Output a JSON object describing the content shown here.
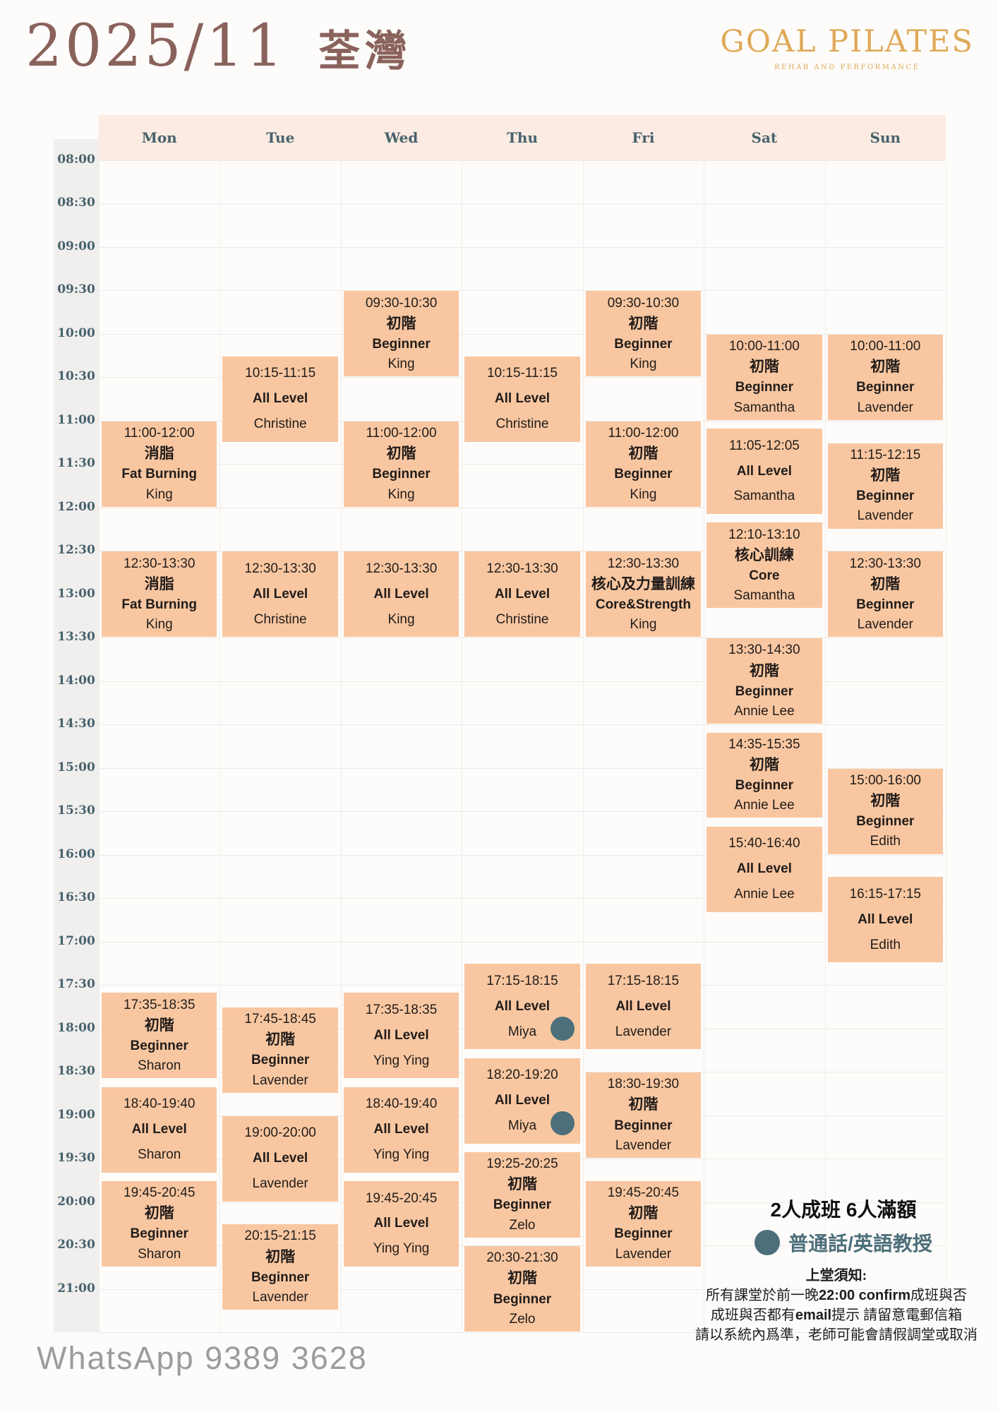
{
  "header": {
    "month": "2025/11",
    "location": "荃灣",
    "brand": "GOAL PILATES",
    "brand_tagline": "REHAB AND PERFORMANCE"
  },
  "calendar": {
    "days": [
      "Mon",
      "Tue",
      "Wed",
      "Thu",
      "Fri",
      "Sat",
      "Sun"
    ],
    "time_labels": [
      "08:00",
      "08:30",
      "09:00",
      "09:30",
      "10:00",
      "10:30",
      "11:00",
      "11:30",
      "12:00",
      "12:30",
      "13:00",
      "13:30",
      "14:00",
      "14:30",
      "15:00",
      "15:30",
      "16:00",
      "16:30",
      "17:00",
      "17:30",
      "18:00",
      "18:30",
      "19:00",
      "19:30",
      "20:00",
      "20:30",
      "21:00"
    ],
    "grid_start": "08:00",
    "grid_end": "21:30"
  },
  "classes": [
    {
      "day": 0,
      "start": "11:00",
      "end": "12:00",
      "name_zh": "消脂",
      "name_en": "Fat Burning",
      "teacher": "King",
      "dot": false
    },
    {
      "day": 0,
      "start": "12:30",
      "end": "13:30",
      "name_zh": "消脂",
      "name_en": "Fat Burning",
      "teacher": "King",
      "dot": false
    },
    {
      "day": 0,
      "start": "17:35",
      "end": "18:35",
      "name_zh": "初階",
      "name_en": "Beginner",
      "teacher": "Sharon",
      "dot": false
    },
    {
      "day": 0,
      "start": "18:40",
      "end": "19:40",
      "name_zh": "",
      "name_en": "All Level",
      "teacher": "Sharon",
      "dot": false
    },
    {
      "day": 0,
      "start": "19:45",
      "end": "20:45",
      "name_zh": "初階",
      "name_en": "Beginner",
      "teacher": "Sharon",
      "dot": false
    },
    {
      "day": 1,
      "start": "10:15",
      "end": "11:15",
      "name_zh": "",
      "name_en": "All Level",
      "teacher": "Christine",
      "dot": false
    },
    {
      "day": 1,
      "start": "12:30",
      "end": "13:30",
      "name_zh": "",
      "name_en": "All Level",
      "teacher": "Christine",
      "dot": false
    },
    {
      "day": 1,
      "start": "17:45",
      "end": "18:45",
      "name_zh": "初階",
      "name_en": "Beginner",
      "teacher": "Lavender",
      "dot": false
    },
    {
      "day": 1,
      "start": "19:00",
      "end": "20:00",
      "name_zh": "",
      "name_en": "All Level",
      "teacher": "Lavender",
      "dot": false
    },
    {
      "day": 1,
      "start": "20:15",
      "end": "21:15",
      "name_zh": "初階",
      "name_en": "Beginner",
      "teacher": "Lavender",
      "dot": false
    },
    {
      "day": 2,
      "start": "09:30",
      "end": "10:30",
      "name_zh": "初階",
      "name_en": "Beginner",
      "teacher": "King",
      "dot": false
    },
    {
      "day": 2,
      "start": "11:00",
      "end": "12:00",
      "name_zh": "初階",
      "name_en": "Beginner",
      "teacher": "King",
      "dot": false
    },
    {
      "day": 2,
      "start": "12:30",
      "end": "13:30",
      "name_zh": "",
      "name_en": "All Level",
      "teacher": "King",
      "dot": false
    },
    {
      "day": 2,
      "start": "17:35",
      "end": "18:35",
      "name_zh": "",
      "name_en": "All Level",
      "teacher": "Ying Ying",
      "dot": false
    },
    {
      "day": 2,
      "start": "18:40",
      "end": "19:40",
      "name_zh": "",
      "name_en": "All Level",
      "teacher": "Ying Ying",
      "dot": false
    },
    {
      "day": 2,
      "start": "19:45",
      "end": "20:45",
      "name_zh": "",
      "name_en": "All Level",
      "teacher": "Ying Ying",
      "dot": false
    },
    {
      "day": 3,
      "start": "10:15",
      "end": "11:15",
      "name_zh": "",
      "name_en": "All Level",
      "teacher": "Christine",
      "dot": false
    },
    {
      "day": 3,
      "start": "12:30",
      "end": "13:30",
      "name_zh": "",
      "name_en": "All Level",
      "teacher": "Christine",
      "dot": false
    },
    {
      "day": 3,
      "start": "17:15",
      "end": "18:15",
      "name_zh": "",
      "name_en": "All Level",
      "teacher": "Miya",
      "dot": true
    },
    {
      "day": 3,
      "start": "18:20",
      "end": "19:20",
      "name_zh": "",
      "name_en": "All Level",
      "teacher": "Miya",
      "dot": true
    },
    {
      "day": 3,
      "start": "19:25",
      "end": "20:25",
      "name_zh": "初階",
      "name_en": "Beginner",
      "teacher": "Zelo",
      "dot": false
    },
    {
      "day": 3,
      "start": "20:30",
      "end": "21:30",
      "name_zh": "初階",
      "name_en": "Beginner",
      "teacher": "Zelo",
      "dot": false
    },
    {
      "day": 4,
      "start": "09:30",
      "end": "10:30",
      "name_zh": "初階",
      "name_en": "Beginner",
      "teacher": "King",
      "dot": false
    },
    {
      "day": 4,
      "start": "11:00",
      "end": "12:00",
      "name_zh": "初階",
      "name_en": "Beginner",
      "teacher": "King",
      "dot": false
    },
    {
      "day": 4,
      "start": "12:30",
      "end": "13:30",
      "name_zh": "核心及力量訓練",
      "name_en": "Core&Strength",
      "teacher": "King",
      "dot": false
    },
    {
      "day": 4,
      "start": "17:15",
      "end": "18:15",
      "name_zh": "",
      "name_en": "All Level",
      "teacher": "Lavender",
      "dot": false
    },
    {
      "day": 4,
      "start": "18:30",
      "end": "19:30",
      "name_zh": "初階",
      "name_en": "Beginner",
      "teacher": "Lavender",
      "dot": false
    },
    {
      "day": 4,
      "start": "19:45",
      "end": "20:45",
      "name_zh": "初階",
      "name_en": "Beginner",
      "teacher": "Lavender",
      "dot": false
    },
    {
      "day": 5,
      "start": "10:00",
      "end": "11:00",
      "name_zh": "初階",
      "name_en": "Beginner",
      "teacher": "Samantha",
      "dot": false
    },
    {
      "day": 5,
      "start": "11:05",
      "end": "12:05",
      "name_zh": "",
      "name_en": "All Level",
      "teacher": "Samantha",
      "dot": false
    },
    {
      "day": 5,
      "start": "12:10",
      "end": "13:10",
      "name_zh": "核心訓練",
      "name_en": "Core",
      "teacher": "Samantha",
      "dot": false
    },
    {
      "day": 5,
      "start": "13:30",
      "end": "14:30",
      "name_zh": "初階",
      "name_en": "Beginner",
      "teacher": "Annie Lee",
      "dot": false
    },
    {
      "day": 5,
      "start": "14:35",
      "end": "15:35",
      "name_zh": "初階",
      "name_en": "Beginner",
      "teacher": "Annie Lee",
      "dot": false
    },
    {
      "day": 5,
      "start": "15:40",
      "end": "16:40",
      "name_zh": "",
      "name_en": "All Level",
      "teacher": "Annie Lee",
      "dot": false
    },
    {
      "day": 6,
      "start": "10:00",
      "end": "11:00",
      "name_zh": "初階",
      "name_en": "Beginner",
      "teacher": "Lavender",
      "dot": false
    },
    {
      "day": 6,
      "start": "11:15",
      "end": "12:15",
      "name_zh": "初階",
      "name_en": "Beginner",
      "teacher": "Lavender",
      "dot": false
    },
    {
      "day": 6,
      "start": "12:30",
      "end": "13:30",
      "name_zh": "初階",
      "name_en": "Beginner",
      "teacher": "Lavender",
      "dot": false
    },
    {
      "day": 6,
      "start": "15:00",
      "end": "16:00",
      "name_zh": "初階",
      "name_en": "Beginner",
      "teacher": "Edith",
      "dot": false
    },
    {
      "day": 6,
      "start": "16:15",
      "end": "17:15",
      "name_zh": "",
      "name_en": "All Level",
      "teacher": "Edith",
      "dot": false
    }
  ],
  "legend": {
    "capacity": "2人成班 6人滿額",
    "dot_label": "普通話/英語教授"
  },
  "notes": {
    "title": "上堂須知:",
    "lines": [
      [
        {
          "t": "所有課堂於前一晚"
        },
        {
          "t": "22:00 confirm",
          "b": true
        },
        {
          "t": "成班與否"
        }
      ],
      [
        {
          "t": "成班與否都有"
        },
        {
          "t": "email",
          "b": true
        },
        {
          "t": "提示 請留意電郵信箱"
        }
      ],
      [
        {
          "t": "請以系統內爲準，老師可能會請假調堂或取消"
        }
      ]
    ]
  },
  "footer": {
    "whatsapp": "WhatsApp 9389 3628"
  },
  "colors": {
    "block_bg": "#f8c7a1",
    "dot_teal": "#4d6f7b",
    "brand_gold": "#dfa958",
    "title_brown": "#8a625c",
    "label_slate": "#47626d",
    "header_band": "#fcebe2"
  }
}
